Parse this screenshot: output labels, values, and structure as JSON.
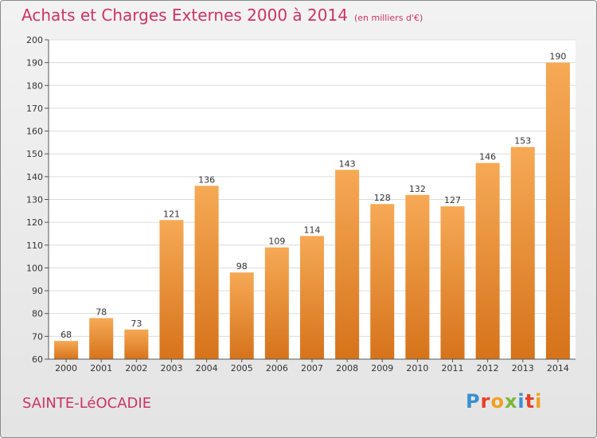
{
  "header": {
    "title": "Achats et Charges Externes 2000 à 2014",
    "unit": "(en milliers d'€)"
  },
  "footer": {
    "place": "SAINTE-LéOCADIE",
    "brand": "Proxiti",
    "brand_colors": [
      "#3a8fd0",
      "#e5402a",
      "#f0a020",
      "#7ab83a",
      "#3a8fd0",
      "#e5402a",
      "#f0a020"
    ]
  },
  "colors": {
    "bar_light": "#f6a955",
    "bar_dark": "#d6731b",
    "title": "#cc3366",
    "grid": "#dcdcdc",
    "axis": "#555555"
  },
  "chart_data": {
    "type": "bar",
    "title": "Achats et Charges Externes 2000 à 2014",
    "categories": [
      "2000",
      "2001",
      "2002",
      "2003",
      "2004",
      "2005",
      "2006",
      "2007",
      "2008",
      "2009",
      "2010",
      "2011",
      "2012",
      "2013",
      "2014"
    ],
    "values": [
      68,
      78,
      73,
      121,
      136,
      98,
      109,
      114,
      143,
      128,
      132,
      127,
      146,
      153,
      190
    ],
    "ylim": [
      60,
      200
    ],
    "yticks": [
      60,
      70,
      80,
      90,
      100,
      110,
      120,
      130,
      140,
      150,
      160,
      170,
      180,
      190,
      200
    ],
    "grid": true,
    "xlabel": "",
    "ylabel": ""
  }
}
